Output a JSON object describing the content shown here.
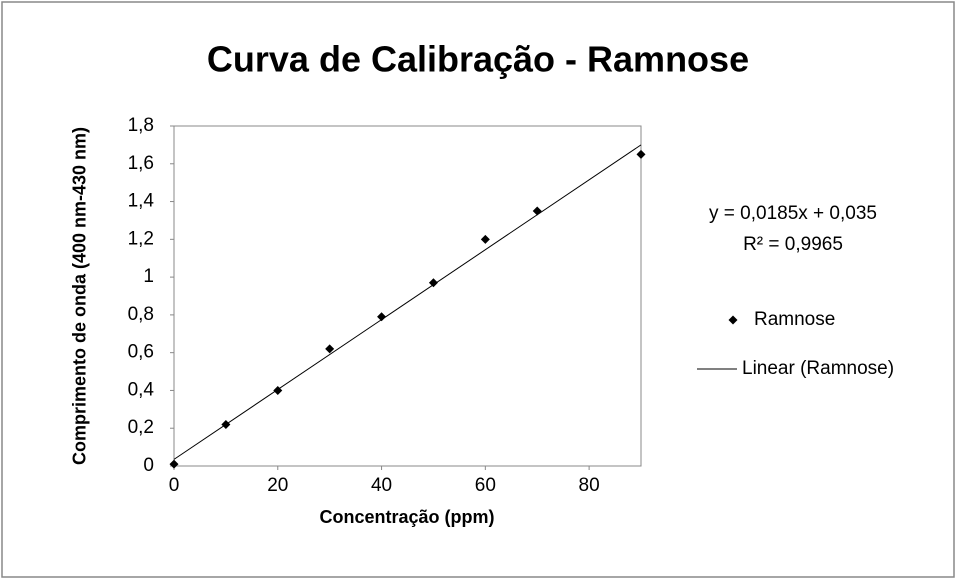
{
  "chart_data": {
    "type": "scatter",
    "title": "Curva de Calibração - Ramnose",
    "xlabel": "Concentração (ppm)",
    "ylabel": "Comprimento de onda (400 nm-430 nm)",
    "x": [
      0,
      10,
      20,
      30,
      40,
      50,
      60,
      70,
      90
    ],
    "series": [
      {
        "name": "Ramnose",
        "color": "#000000",
        "values": [
          0.01,
          0.22,
          0.4,
          0.62,
          0.79,
          0.97,
          1.2,
          1.35,
          1.65
        ]
      }
    ],
    "trendline": {
      "name": "Linear (Ramnose)",
      "color": "#000000",
      "slope": 0.0185,
      "intercept": 0.035,
      "equation": "y = 0,0185x + 0,035",
      "r2": "R² = 0,9965"
    },
    "xlim": [
      0,
      90
    ],
    "xticks": [
      0,
      20,
      40,
      60,
      80
    ],
    "ylim": [
      0,
      1.8
    ],
    "yticks": [
      0,
      {
        "value": 0.2,
        "label": "0,2"
      },
      {
        "value": 0.4,
        "label": "0,4"
      },
      {
        "value": 0.6,
        "label": "0,6"
      },
      {
        "value": 0.8,
        "label": "0,8"
      },
      1,
      {
        "value": 1.2,
        "label": "1,2"
      },
      {
        "value": 1.4,
        "label": "1,4"
      },
      {
        "value": 1.6,
        "label": "1,6"
      },
      {
        "value": 1.8,
        "label": "1,8"
      }
    ],
    "grid": false,
    "legend": "right"
  }
}
